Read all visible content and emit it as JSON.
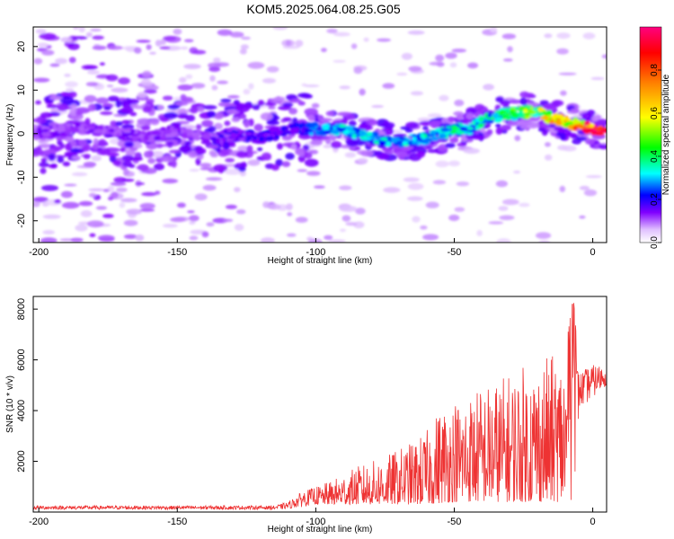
{
  "title": "KOM5.2025.064.08.25.G05",
  "chart_data": [
    {
      "type": "heatmap",
      "xlabel": "Height of straight line (km)",
      "ylabel": "Frequency (Hz)",
      "xlim": [
        -202,
        5
      ],
      "ylim": [
        -25,
        24.5
      ],
      "xticks": [
        -200,
        -150,
        -100,
        -50,
        0
      ],
      "yticks": [
        -20,
        -10,
        0,
        10,
        20
      ],
      "colorbar": {
        "label": "Normalized spectral amplitude",
        "range": [
          0,
          1
        ],
        "ticks": [
          0.0,
          0.2,
          0.4,
          0.6,
          0.8
        ]
      },
      "ridge": {
        "x": [
          -200,
          -190,
          -180,
          -170,
          -160,
          -150,
          -140,
          -130,
          -120,
          -110,
          -100,
          -90,
          -80,
          -70,
          -60,
          -50,
          -45,
          -40,
          -35,
          -30,
          -25,
          -20,
          -15,
          -10,
          -5,
          0,
          5
        ],
        "y": [
          0.0,
          1.0,
          1.0,
          0.0,
          -1.0,
          1.0,
          -1.0,
          0.0,
          -1.0,
          1.0,
          1.0,
          1.0,
          -1.0,
          -2.0,
          -1.0,
          1.0,
          1.0,
          3.0,
          4.0,
          4.5,
          5.0,
          5.0,
          3.5,
          3.0,
          2.0,
          1.0,
          0.5
        ],
        "amplitude": [
          0.15,
          0.15,
          0.15,
          0.15,
          0.15,
          0.15,
          0.15,
          0.2,
          0.2,
          0.2,
          0.3,
          0.35,
          0.35,
          0.35,
          0.4,
          0.4,
          0.35,
          0.4,
          0.45,
          0.5,
          0.55,
          0.6,
          0.7,
          0.75,
          0.85,
          1.0,
          1.0
        ]
      }
    },
    {
      "type": "line",
      "xlabel": "Height of straight line (km)",
      "ylabel": "SNR (10 * v/v)",
      "xlim": [
        -202,
        5
      ],
      "ylim": [
        0,
        8500
      ],
      "xticks": [
        -200,
        -150,
        -100,
        -50,
        0
      ],
      "yticks": [
        2000,
        4000,
        6000,
        8000
      ],
      "series": [
        {
          "color": "#ee3333",
          "envelope": {
            "x": [
              -202,
              -150,
              -115,
              -110,
              -105,
              -100,
              -95,
              -90,
              -85,
              -80,
              -75,
              -70,
              -65,
              -60,
              -55,
              -50,
              -45,
              -40,
              -35,
              -30,
              -25,
              -20,
              -15,
              -10,
              -7,
              -5,
              0,
              5
            ],
            "low": [
              100,
              100,
              100,
              120,
              200,
              300,
              300,
              300,
              300,
              300,
              300,
              300,
              300,
              300,
              350,
              400,
              400,
              400,
              400,
              400,
              400,
              400,
              400,
              400,
              500,
              4000,
              4500,
              5000
            ],
            "high": [
              250,
              250,
              250,
              400,
              800,
              1000,
              1200,
              1500,
              1800,
              2000,
              2200,
              2500,
              2800,
              3200,
              4200,
              4500,
              4700,
              5000,
              5200,
              5500,
              5800,
              6000,
              6200,
              6300,
              8500,
              5500,
              5800,
              5800
            ]
          }
        }
      ]
    }
  ]
}
